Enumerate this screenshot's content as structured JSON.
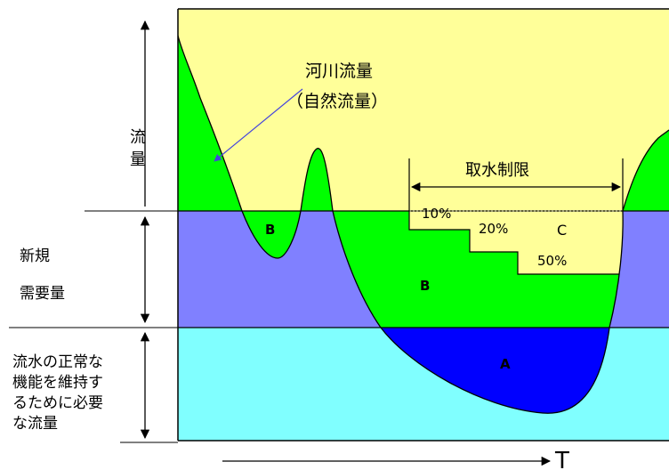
{
  "labels": {
    "river_flow": "河川流量",
    "natural_flow": "（自然流量）",
    "flow_axis": [
      "流",
      "量"
    ],
    "new_demand": [
      "新規",
      "需要量"
    ],
    "maintenance_flow": [
      "流水の正常な",
      "機能を維持す",
      "るために必要",
      "な流量"
    ],
    "intake_restriction": "取水制限",
    "step_10": "10%",
    "step_20": "20%",
    "step_50": "50%",
    "region_a": "A",
    "region_b": "B",
    "region_c": "C",
    "time_axis": "T"
  },
  "colors": {
    "yellow": "#ffff99",
    "green": "#00ff00",
    "purple": "#8080ff",
    "cyan": "#80ffff",
    "blue": "#0000ff",
    "arrow_blue": "#4444dd",
    "line": "#000000"
  }
}
